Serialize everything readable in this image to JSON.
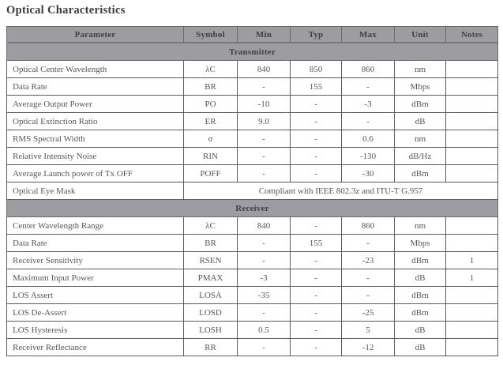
{
  "page": {
    "title": "Optical Characteristics"
  },
  "colors": {
    "header_bg": "#9d9da1",
    "section_bg": "#9d9da1",
    "border": "#5c5c60",
    "header_text": "#414145",
    "body_text": "#57575b"
  },
  "table": {
    "columns": [
      "Parameter",
      "Symbol",
      "Min",
      "Typ",
      "Max",
      "Unit",
      "Notes"
    ],
    "sections": [
      {
        "name": "Transmitter",
        "rows": [
          {
            "parameter": "Optical Center Wavelength",
            "symbol": "λC",
            "min": "840",
            "typ": "850",
            "max": "860",
            "unit": "nm",
            "notes": ""
          },
          {
            "parameter": "Data Rate",
            "symbol": "BR",
            "min": "-",
            "typ": "155",
            "max": "-",
            "unit": "Mbps",
            "notes": ""
          },
          {
            "parameter": "Average Output Power",
            "symbol": "PO",
            "min": "-10",
            "typ": "-",
            "max": "-3",
            "unit": "dBm",
            "notes": ""
          },
          {
            "parameter": "Optical Extinction Ratio",
            "symbol": "ER",
            "min": "9.0",
            "typ": "-",
            "max": "-",
            "unit": "dB",
            "notes": ""
          },
          {
            "parameter": "RMS Spectral Width",
            "symbol": "σ",
            "min": "-",
            "typ": "-",
            "max": "0.6",
            "unit": "nm",
            "notes": ""
          },
          {
            "parameter": "Relative Intensity Noise",
            "symbol": "RIN",
            "min": "-",
            "typ": "-",
            "max": "-130",
            "unit": "dB/Hz",
            "notes": ""
          },
          {
            "parameter": "Average Launch power of Tx OFF",
            "symbol": "POFF",
            "min": "-",
            "typ": "-",
            "max": "-30",
            "unit": "dBm",
            "notes": ""
          },
          {
            "parameter": "Optical Eye Mask",
            "span": "Compliant with IEEE 802.3z and ITU-T G.957"
          }
        ]
      },
      {
        "name": "Receiver",
        "rows": [
          {
            "parameter": "Center Wavelength Range",
            "symbol": "λC",
            "min": "840",
            "typ": "-",
            "max": "860",
            "unit": "nm",
            "notes": ""
          },
          {
            "parameter": "Data Rate",
            "symbol": "BR",
            "min": "-",
            "typ": "155",
            "max": "-",
            "unit": "Mbps",
            "notes": ""
          },
          {
            "parameter": "Receiver Sensitivity",
            "symbol": "RSEN",
            "min": "-",
            "typ": "-",
            "max": "-23",
            "unit": "dBm",
            "notes": "1"
          },
          {
            "parameter": "Maximum Input Power",
            "symbol": "PMAX",
            "min": "-3",
            "typ": "-",
            "max": "-",
            "unit": "dB",
            "notes": "1"
          },
          {
            "parameter": "LOS Assert",
            "symbol": "LOSA",
            "min": "-35",
            "typ": "-",
            "max": "-",
            "unit": "dBm",
            "notes": ""
          },
          {
            "parameter": "LOS De-Assert",
            "symbol": "LOSD",
            "min": "-",
            "typ": "-",
            "max": "-25",
            "unit": "dBm",
            "notes": ""
          },
          {
            "parameter": "LOS Hysteresis",
            "symbol": "LOSH",
            "min": "0.5",
            "typ": "-",
            "max": "5",
            "unit": "dB",
            "notes": ""
          },
          {
            "parameter": "Receiver Reflectance",
            "symbol": "RR",
            "min": "-",
            "typ": "-",
            "max": "-12",
            "unit": "dB",
            "notes": ""
          }
        ]
      }
    ]
  }
}
